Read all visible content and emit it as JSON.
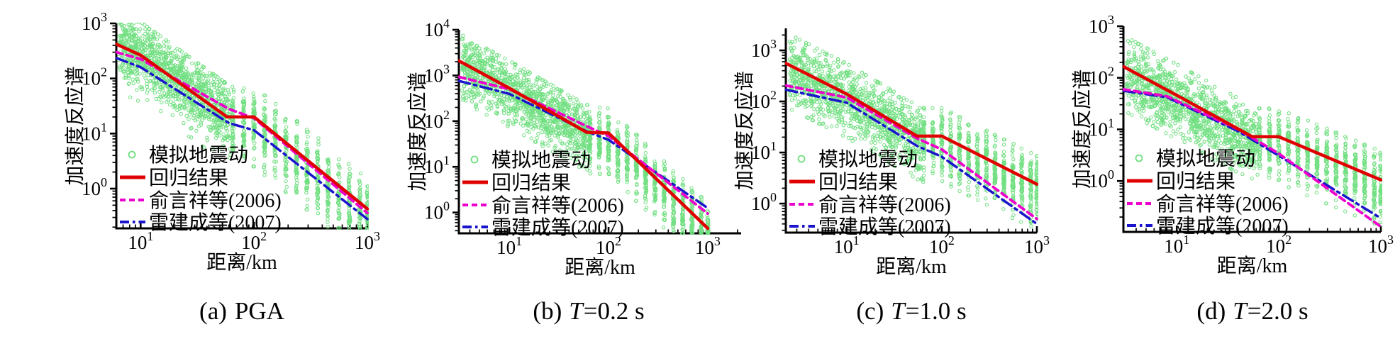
{
  "figure": {
    "background": "#ffffff",
    "text_color": "#000000",
    "colors": {
      "scatter_green": "#70df80",
      "regression_red": "#e00000",
      "yu2006_magenta": "#ee00cc",
      "lei2007_blue": "#1a14cc",
      "axis_black": "#000000"
    }
  },
  "chart_data": [
    {
      "id": "a",
      "type": "scatter+line",
      "scale": {
        "x": "log",
        "y": "log"
      },
      "caption": {
        "index": "(a)",
        "variable": "",
        "value": "PGA"
      },
      "xlabel": "距离/km",
      "ylabel": "加速度反应谱",
      "xlim": [
        6.1,
        1000
      ],
      "ylim": [
        0.19,
        1000
      ],
      "xticks": [
        10,
        100,
        1000
      ],
      "yticks": [
        1,
        10,
        100,
        1000
      ],
      "legend_position": "lower-left",
      "grid": false,
      "scatter": {
        "label": "模拟地震动",
        "marker": "open-circle",
        "color": "#70df80",
        "cloud": {
          "x_range": [
            6.4,
            62
          ],
          "count": 1200,
          "offset_log": 0.02,
          "sigma_log": 0.3
        },
        "strips": {
          "x": [
            65,
            81,
            100,
            124,
            154,
            191,
            237,
            294,
            364,
            451,
            560,
            694,
            861,
            1000
          ],
          "count_per_x": 60,
          "offset_log": -0.15,
          "sigma_log": 0.33
        },
        "seed": 11
      },
      "series": [
        {
          "name": "回归结果",
          "style": "solid",
          "color": "#e00000",
          "points": [
            [
              6.1,
              420
            ],
            [
              10,
              265
            ],
            [
              58,
              20
            ],
            [
              100,
              20
            ],
            [
              1000,
              0.43
            ]
          ]
        },
        {
          "name": "俞言祥等(2006)",
          "style": "dashed",
          "color": "#ee00cc",
          "points": [
            [
              6.1,
              300
            ],
            [
              10,
              225
            ],
            [
              60,
              28
            ],
            [
              100,
              19
            ],
            [
              1000,
              0.36
            ]
          ]
        },
        {
          "name": "雷建成等(2007)",
          "style": "dashdot",
          "color": "#1a14cc",
          "points": [
            [
              6.1,
              235
            ],
            [
              10,
              160
            ],
            [
              60,
              15.5
            ],
            [
              100,
              11.5
            ],
            [
              1000,
              0.28
            ]
          ]
        }
      ]
    },
    {
      "id": "b",
      "type": "scatter+line",
      "scale": {
        "x": "log",
        "y": "log"
      },
      "caption": {
        "index": "(b)",
        "variable": "T",
        "value": "=0.2 s"
      },
      "xlabel": "距离/km",
      "ylabel": "加速度反应谱",
      "xlim": [
        3.1,
        2170
      ],
      "ylim": [
        0.35,
        10000
      ],
      "xticks": [
        10,
        100,
        1000
      ],
      "yticks": [
        1,
        10,
        100,
        1000,
        10000
      ],
      "legend_position": "lower-left",
      "grid": false,
      "scatter": {
        "label": "模拟地震动",
        "marker": "open-circle",
        "color": "#70df80",
        "cloud": {
          "x_range": [
            3.3,
            62
          ],
          "count": 1200,
          "offset_log": -0.05,
          "sigma_log": 0.33
        },
        "strips": {
          "x": [
            65,
            81,
            100,
            124,
            154,
            191,
            237,
            294,
            364,
            451,
            560,
            694,
            861,
            1000
          ],
          "count_per_x": 60,
          "offset_log": -0.15,
          "sigma_log": 0.33
        },
        "seed": 22
      },
      "series": [
        {
          "name": "回归结果",
          "style": "solid",
          "color": "#e00000",
          "points": [
            [
              3.1,
              2100
            ],
            [
              10,
              525
            ],
            [
              60,
              57
            ],
            [
              100,
              55
            ],
            [
              700,
              0.95
            ],
            [
              1000,
              0.45
            ]
          ]
        },
        {
          "name": "俞言祥等(2006)",
          "style": "dashed",
          "color": "#ee00cc",
          "points": [
            [
              3.1,
              930
            ],
            [
              10,
              500
            ],
            [
              60,
              78
            ],
            [
              100,
              47
            ],
            [
              1000,
              0.95
            ]
          ]
        },
        {
          "name": "雷建成等(2007)",
          "style": "dashdot",
          "color": "#1a14cc",
          "points": [
            [
              3.1,
              760
            ],
            [
              10,
              395
            ],
            [
              60,
              60
            ],
            [
              100,
              39
            ],
            [
              1000,
              1.25
            ]
          ]
        }
      ]
    },
    {
      "id": "c",
      "type": "scatter+line",
      "scale": {
        "x": "log",
        "y": "log"
      },
      "caption": {
        "index": "(c)",
        "variable": "T",
        "value": "=1.0 s"
      },
      "xlabel": "距离/km",
      "ylabel": "加速度反应谱",
      "xlim": [
        2.3,
        1000
      ],
      "ylim": [
        0.27,
        2700
      ],
      "xticks": [
        10,
        100,
        1000
      ],
      "yticks": [
        1,
        10,
        100,
        1000
      ],
      "legend_position": "lower-left",
      "grid": false,
      "scatter": {
        "label": "模拟地震动",
        "marker": "open-circle",
        "color": "#70df80",
        "cloud": {
          "x_range": [
            2.5,
            62
          ],
          "count": 1200,
          "offset_log": -0.1,
          "sigma_log": 0.33
        },
        "strips": {
          "x": [
            65,
            81,
            100,
            124,
            154,
            191,
            237,
            294,
            364,
            451,
            560,
            694,
            861,
            1000
          ],
          "count_per_x": 60,
          "offset_log": -0.12,
          "sigma_log": 0.33
        },
        "seed": 33
      },
      "series": [
        {
          "name": "回归结果",
          "style": "solid",
          "color": "#e00000",
          "points": [
            [
              2.3,
              560
            ],
            [
              10,
              140
            ],
            [
              55,
              21
            ],
            [
              100,
              21
            ],
            [
              1000,
              2.4
            ]
          ]
        },
        {
          "name": "俞言祥等(2006)",
          "style": "dashed",
          "color": "#ee00cc",
          "points": [
            [
              2.3,
              205
            ],
            [
              10,
              120
            ],
            [
              55,
              19
            ],
            [
              100,
              11.5
            ],
            [
              1000,
              0.5
            ]
          ]
        },
        {
          "name": "雷建成等(2007)",
          "style": "dashdot",
          "color": "#1a14cc",
          "points": [
            [
              2.3,
              170
            ],
            [
              10,
              95
            ],
            [
              55,
              13.5
            ],
            [
              100,
              8.3
            ],
            [
              1000,
              0.4
            ]
          ]
        }
      ]
    },
    {
      "id": "d",
      "type": "scatter+line",
      "scale": {
        "x": "log",
        "y": "log"
      },
      "caption": {
        "index": "(d)",
        "variable": "T",
        "value": "=2.0 s"
      },
      "xlabel": "距离/km",
      "ylabel": "加速度反应谱",
      "xlim": [
        3.0,
        1000
      ],
      "ylim": [
        0.103,
        1000
      ],
      "xticks": [
        10,
        100,
        1000
      ],
      "yticks": [
        1,
        10,
        100,
        1000
      ],
      "legend_position": "lower-left",
      "grid": false,
      "scatter": {
        "label": "模拟地震动",
        "marker": "open-circle",
        "color": "#70df80",
        "cloud": {
          "x_range": [
            3.2,
            62
          ],
          "count": 1200,
          "offset_log": -0.15,
          "sigma_log": 0.33
        },
        "strips": {
          "x": [
            65,
            81,
            100,
            124,
            154,
            191,
            237,
            294,
            364,
            451,
            560,
            694,
            861,
            1000
          ],
          "count_per_x": 60,
          "offset_log": -0.12,
          "sigma_log": 0.33
        },
        "seed": 44
      },
      "series": [
        {
          "name": "回归结果",
          "style": "solid",
          "color": "#e00000",
          "points": [
            [
              3.0,
              165
            ],
            [
              10,
              46
            ],
            [
              55,
              7.2
            ],
            [
              100,
              7.2
            ],
            [
              1000,
              1.05
            ]
          ]
        },
        {
          "name": "俞言祥等(2006)",
          "style": "dashed",
          "color": "#ee00cc",
          "points": [
            [
              3.0,
              60
            ],
            [
              8,
              44
            ],
            [
              40,
              10
            ],
            [
              100,
              3.4
            ],
            [
              1000,
              0.13
            ]
          ]
        },
        {
          "name": "雷建成等(2007)",
          "style": "dashdot",
          "color": "#1a14cc",
          "points": [
            [
              3.0,
              56
            ],
            [
              8,
              42
            ],
            [
              40,
              9.2
            ],
            [
              100,
              3.1
            ],
            [
              1000,
              0.19
            ]
          ]
        }
      ]
    }
  ]
}
